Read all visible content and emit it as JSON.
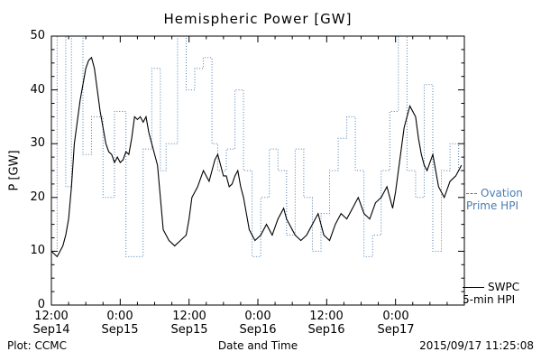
{
  "title": "Hemispheric Power [GW]",
  "colors": {
    "ovation": "#4a7db0",
    "swpc": "#000000",
    "frame": "#000000",
    "background": "#ffffff"
  },
  "legend": {
    "ovation_line1": "Ovation",
    "ovation_line2": "Prime HPI",
    "swpc_line1": "SWPC",
    "swpc_line2": "5-min HPI"
  },
  "footer": {
    "left": "Plot: CCMC",
    "xlabel": "Date and Time",
    "right": "2015/09/17 11:25:08"
  },
  "chart_data": {
    "type": "line",
    "title": "Hemispheric Power [GW]",
    "xlabel": "Date and Time",
    "ylabel": "P [GW]",
    "ylim": [
      0,
      50
    ],
    "xlim": [
      0,
      72
    ],
    "x_unit": "hours since Sep14 12:00",
    "grid": false,
    "legend_position": "right-outside",
    "y_ticks": [
      0,
      10,
      20,
      30,
      40,
      50
    ],
    "x_ticks": [
      {
        "t": 0,
        "time": "12:00",
        "date": "Sep14"
      },
      {
        "t": 12,
        "time": "0:00",
        "date": "Sep15"
      },
      {
        "t": 24,
        "time": "12:00",
        "date": "Sep15"
      },
      {
        "t": 36,
        "time": "0:00",
        "date": "Sep16"
      },
      {
        "t": 48,
        "time": "12:00",
        "date": "Sep16"
      },
      {
        "t": 60,
        "time": "0:00",
        "date": "Sep17"
      }
    ],
    "series": [
      {
        "name": "Ovation Prime HPI",
        "style": "dotted-step",
        "color": "#4a7db0",
        "t": [
          0,
          1,
          2.5,
          3.5,
          5.5,
          7,
          9,
          11,
          13,
          16,
          17.5,
          19,
          20,
          22,
          23.5,
          25,
          26.5,
          28,
          29,
          30.5,
          32,
          33.5,
          35,
          36.5,
          38,
          39.5,
          41,
          42.5,
          44,
          45.5,
          47,
          48.5,
          50,
          51.5,
          53,
          54.5,
          56,
          57.5,
          59,
          60.5,
          62,
          63.5,
          65,
          66.5,
          68,
          69.5,
          71
        ],
        "v": [
          10,
          50,
          22,
          50,
          28,
          35,
          20,
          36,
          9,
          29,
          44,
          25,
          30,
          50,
          40,
          44,
          46,
          30,
          25,
          29,
          40,
          25,
          9,
          20,
          29,
          25,
          13,
          29,
          20,
          10,
          17,
          25,
          31,
          35,
          25,
          9,
          13,
          25,
          36,
          50,
          25,
          20,
          41,
          10,
          25,
          30,
          25
        ]
      },
      {
        "name": "SWPC 5-min HPI",
        "style": "solid",
        "color": "#000000",
        "t0": 0,
        "dt": 0.5,
        "v": [
          10,
          9.5,
          9,
          10,
          11,
          13,
          16,
          22,
          30,
          34,
          38,
          41,
          44,
          45.5,
          46,
          44,
          40,
          36,
          33,
          30,
          28.5,
          28,
          26.5,
          27.5,
          26.5,
          27,
          28.5,
          28,
          31,
          35,
          34.5,
          35,
          34,
          35,
          32,
          30,
          28,
          26,
          20,
          14,
          13,
          12,
          11.5,
          11,
          11.5,
          12,
          12.5,
          13,
          16,
          20,
          21,
          22,
          23.5,
          25,
          24,
          23,
          25,
          27,
          28,
          26,
          24,
          24,
          22,
          22.5,
          24,
          25,
          22,
          20,
          17,
          14,
          13,
          12,
          12.5,
          13,
          14,
          15,
          14,
          13,
          14.5,
          16,
          17,
          18,
          16,
          15,
          14,
          13,
          12.5,
          12,
          12.5,
          13,
          14,
          15,
          16,
          17,
          15,
          13,
          12.5,
          12,
          13.5,
          15,
          16,
          17,
          16.5,
          16,
          17,
          18,
          19,
          20,
          18.5,
          17,
          16.5,
          16,
          17.5,
          19,
          19.5,
          20,
          21,
          22,
          20,
          18,
          21,
          25,
          29,
          33,
          35,
          37,
          36,
          35,
          31,
          28,
          26,
          25,
          26.5,
          28,
          25,
          22,
          21,
          20,
          21.5,
          23,
          23.5,
          24,
          25,
          26
        ]
      }
    ]
  }
}
